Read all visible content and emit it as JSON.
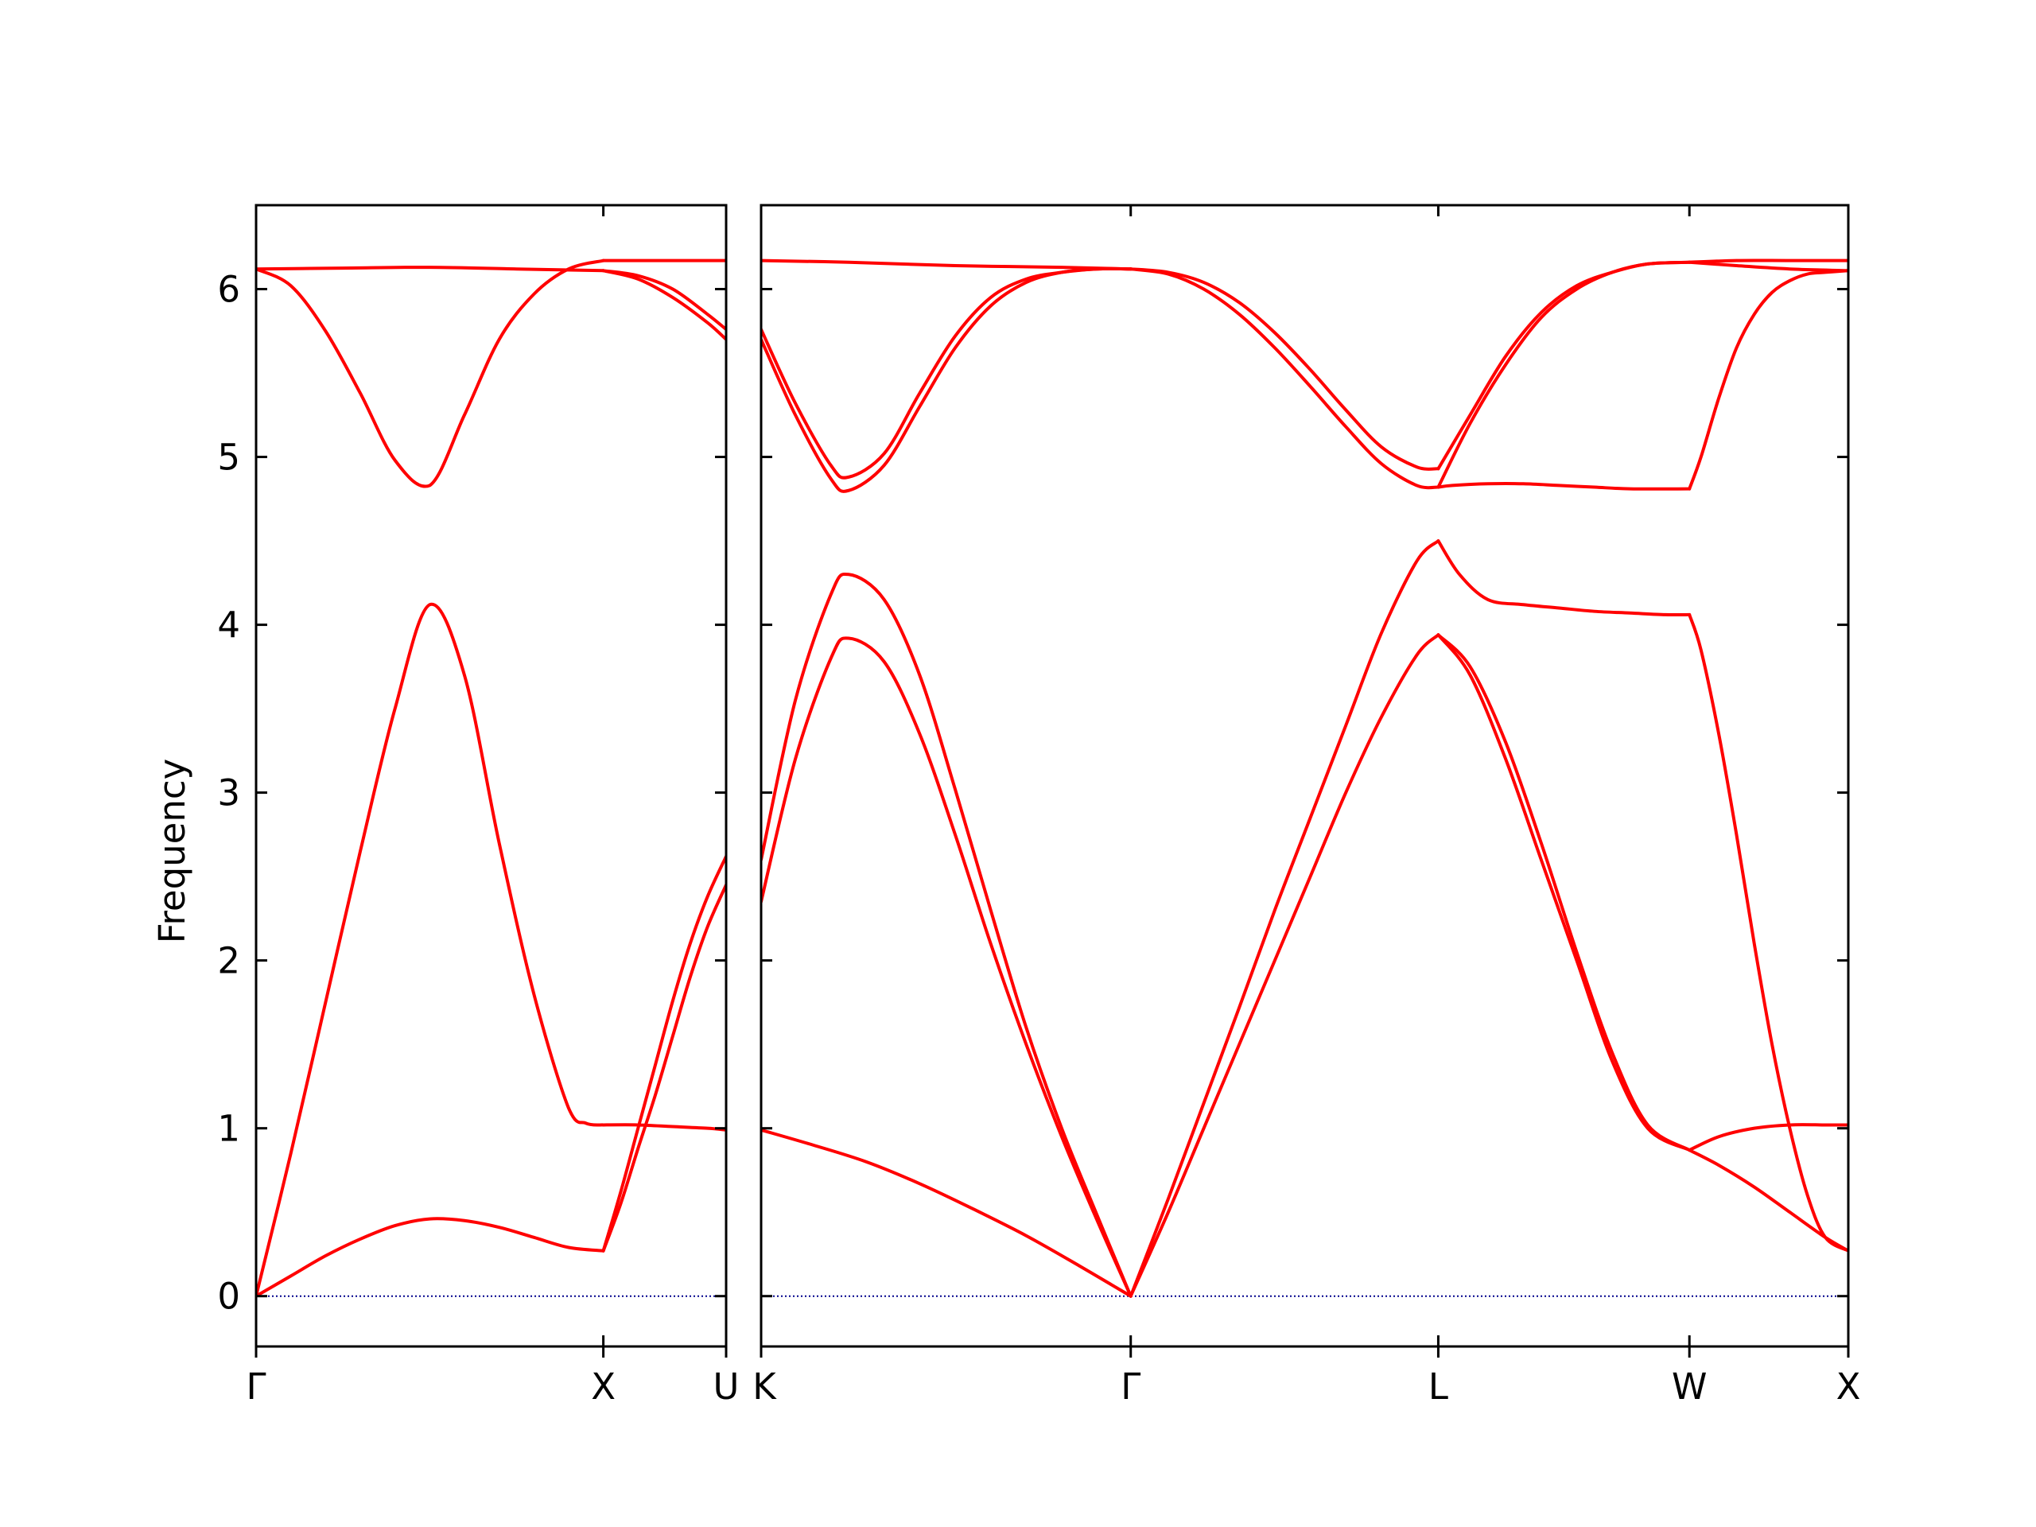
{
  "chart_data": {
    "type": "line",
    "title": "",
    "ylabel": "Frequency",
    "xlabel": "",
    "ylim": [
      -0.3,
      6.5
    ],
    "grid": false,
    "legend": "none",
    "colors": {
      "band": "#ff0000",
      "zero_line": "#00008b",
      "frame": "#000000"
    },
    "yticks": [
      0,
      1,
      2,
      3,
      4,
      5,
      6
    ],
    "panels": [
      {
        "xlim": [
          0,
          1.3536
        ],
        "xticks": [
          {
            "x": 0,
            "label": "Γ"
          },
          {
            "x": 1.0,
            "label": "X"
          },
          {
            "x": 1.3536,
            "label": "U"
          }
        ],
        "segments": [
          {
            "x_start": 0,
            "x_end": 1.0,
            "bands": [
              {
                "x": [
                  0,
                  0.1,
                  0.2,
                  0.3,
                  0.4,
                  0.5,
                  0.6,
                  0.7,
                  0.8,
                  0.9,
                  1.0
                ],
                "y": [
                  0,
                  0.12,
                  0.24,
                  0.34,
                  0.42,
                  0.46,
                  0.45,
                  0.41,
                  0.35,
                  0.29,
                  0.27
                ]
              },
              {
                "x": [
                  0,
                  0.1,
                  0.2,
                  0.3,
                  0.4,
                  0.5,
                  0.6,
                  0.7,
                  0.8,
                  0.9,
                  0.95,
                  1.0
                ],
                "y": [
                  0,
                  0.85,
                  1.75,
                  2.65,
                  3.5,
                  4.12,
                  3.7,
                  2.7,
                  1.8,
                  1.12,
                  1.03,
                  1.02
                ]
              },
              {
                "x": [
                  0,
                  0.1,
                  0.2,
                  0.3,
                  0.4,
                  0.5,
                  0.6,
                  0.7,
                  0.8,
                  0.9,
                  1.0
                ],
                "y": [
                  6.12,
                  6.02,
                  5.75,
                  5.38,
                  4.98,
                  4.83,
                  5.25,
                  5.7,
                  5.97,
                  6.12,
                  6.17
                ]
              },
              {
                "x": [
                  0,
                  0.25,
                  0.5,
                  0.75,
                  1.0
                ],
                "y": [
                  6.12,
                  6.125,
                  6.13,
                  6.12,
                  6.11
                ]
              }
            ]
          },
          {
            "x_start": 1.0,
            "x_end": 1.3536,
            "bands": [
              {
                "x": [
                  1.0,
                  1.05,
                  1.1,
                  1.15,
                  1.2,
                  1.25,
                  1.3,
                  1.3536
                ],
                "y": [
                  0.27,
                  0.55,
                  0.88,
                  1.2,
                  1.55,
                  1.9,
                  2.2,
                  2.45
                ]
              },
              {
                "x": [
                  1.0,
                  1.05,
                  1.1,
                  1.15,
                  1.2,
                  1.25,
                  1.3,
                  1.3536
                ],
                "y": [
                  0.27,
                  0.62,
                  1.0,
                  1.38,
                  1.76,
                  2.1,
                  2.38,
                  2.62
                ]
              },
              {
                "x": [
                  1.0,
                  1.1,
                  1.2,
                  1.3,
                  1.3536
                ],
                "y": [
                  1.02,
                  1.02,
                  1.01,
                  1.0,
                  0.99
                ]
              },
              {
                "x": [
                  1.0,
                  1.1,
                  1.2,
                  1.3,
                  1.3536
                ],
                "y": [
                  6.11,
                  6.06,
                  5.95,
                  5.8,
                  5.7
                ]
              },
              {
                "x": [
                  1.0,
                  1.1,
                  1.2,
                  1.3,
                  1.3536
                ],
                "y": [
                  6.11,
                  6.08,
                  6.0,
                  5.85,
                  5.76
                ]
              },
              {
                "x": [
                  1.0,
                  1.1,
                  1.2,
                  1.3,
                  1.3536
                ],
                "y": [
                  6.17,
                  6.17,
                  6.17,
                  6.17,
                  6.17
                ]
              }
            ]
          }
        ]
      },
      {
        "xlim": [
          1.3536,
          4.4148
        ],
        "xticks": [
          {
            "x": 1.3536,
            "label": "K"
          },
          {
            "x": 2.3943,
            "label": "Γ"
          },
          {
            "x": 3.2603,
            "label": "L"
          },
          {
            "x": 3.9674,
            "label": "W"
          },
          {
            "x": 4.4148,
            "label": "X"
          }
        ],
        "segments": [
          {
            "x_start": 1.3536,
            "x_end": 2.3943,
            "bands": [
              {
                "x": [
                  1.3536,
                  1.5,
                  1.65,
                  1.8,
                  1.95,
                  2.1,
                  2.25,
                  2.3943
                ],
                "y": [
                  0.99,
                  0.9,
                  0.8,
                  0.67,
                  0.52,
                  0.36,
                  0.18,
                  0
                ]
              },
              {
                "x": [
                  1.3536,
                  1.45,
                  1.55,
                  1.6,
                  1.7,
                  1.8,
                  1.9,
                  2.0,
                  2.1,
                  2.2,
                  2.3,
                  2.3943
                ],
                "y": [
                  2.35,
                  3.2,
                  3.8,
                  3.92,
                  3.78,
                  3.35,
                  2.75,
                  2.1,
                  1.5,
                  0.95,
                  0.45,
                  0
                ]
              },
              {
                "x": [
                  1.3536,
                  1.45,
                  1.55,
                  1.6,
                  1.7,
                  1.8,
                  1.9,
                  2.0,
                  2.1,
                  2.2,
                  2.3,
                  2.3943
                ],
                "y": [
                  2.6,
                  3.55,
                  4.18,
                  4.3,
                  4.15,
                  3.7,
                  3.02,
                  2.3,
                  1.6,
                  1.0,
                  0.48,
                  0
                ]
              },
              {
                "x": [
                  1.3536,
                  1.45,
                  1.55,
                  1.6,
                  1.7,
                  1.8,
                  1.9,
                  2.0,
                  2.1,
                  2.2,
                  2.3,
                  2.3943
                ],
                "y": [
                  5.7,
                  5.25,
                  4.87,
                  4.8,
                  4.95,
                  5.3,
                  5.65,
                  5.9,
                  6.04,
                  6.1,
                  6.12,
                  6.12
                ]
              },
              {
                "x": [
                  1.3536,
                  1.45,
                  1.55,
                  1.6,
                  1.7,
                  1.8,
                  1.9,
                  2.0,
                  2.1,
                  2.2,
                  2.3,
                  2.3943
                ],
                "y": [
                  5.76,
                  5.32,
                  4.95,
                  4.88,
                  5.02,
                  5.38,
                  5.72,
                  5.95,
                  6.06,
                  6.1,
                  6.12,
                  6.12
                ]
              },
              {
                "x": [
                  1.3536,
                  1.6,
                  1.9,
                  2.2,
                  2.3943
                ],
                "y": [
                  6.17,
                  6.16,
                  6.14,
                  6.13,
                  6.12
                ]
              }
            ]
          },
          {
            "x_start": 2.3943,
            "x_end": 3.2603,
            "bands": [
              {
                "x": [
                  2.3943,
                  2.5,
                  2.6,
                  2.7,
                  2.8,
                  2.9,
                  3.0,
                  3.1,
                  3.2,
                  3.2603
                ],
                "y": [
                  0,
                  0.5,
                  1.0,
                  1.5,
                  2.0,
                  2.5,
                  3.0,
                  3.45,
                  3.82,
                  3.94
                ]
              },
              {
                "x": [
                  2.3943,
                  2.5,
                  2.6,
                  2.7,
                  2.8,
                  2.9,
                  3.0,
                  3.1,
                  3.2,
                  3.2603
                ],
                "y": [
                  0,
                  0.58,
                  1.15,
                  1.72,
                  2.3,
                  2.85,
                  3.4,
                  3.95,
                  4.38,
                  4.5
                ]
              },
              {
                "x": [
                  2.3943,
                  2.5,
                  2.6,
                  2.7,
                  2.8,
                  2.9,
                  3.0,
                  3.1,
                  3.2,
                  3.2603
                ],
                "y": [
                  6.12,
                  6.09,
                  6.0,
                  5.85,
                  5.65,
                  5.42,
                  5.18,
                  4.96,
                  4.83,
                  4.82
                ]
              },
              {
                "x": [
                  2.3943,
                  2.5,
                  2.6,
                  2.7,
                  2.8,
                  2.9,
                  3.0,
                  3.1,
                  3.2,
                  3.2603
                ],
                "y": [
                  6.12,
                  6.1,
                  6.04,
                  5.92,
                  5.74,
                  5.52,
                  5.28,
                  5.06,
                  4.94,
                  4.93
                ]
              }
            ]
          },
          {
            "x_start": 3.2603,
            "x_end": 3.9674,
            "bands": [
              {
                "x": [
                  3.2603,
                  3.35,
                  3.45,
                  3.55,
                  3.65,
                  3.75,
                  3.85,
                  3.9674
                ],
                "y": [
                  3.94,
                  3.7,
                  3.2,
                  2.6,
                  2.0,
                  1.4,
                  1.0,
                  0.87
                ]
              },
              {
                "x": [
                  3.2603,
                  3.35,
                  3.45,
                  3.55,
                  3.65,
                  3.75,
                  3.85,
                  3.9674
                ],
                "y": [
                  3.94,
                  3.75,
                  3.3,
                  2.7,
                  2.05,
                  1.45,
                  1.02,
                  0.87
                ]
              },
              {
                "x": [
                  3.2603,
                  3.32,
                  3.4,
                  3.5,
                  3.6,
                  3.7,
                  3.8,
                  3.9,
                  3.9674
                ],
                "y": [
                  4.5,
                  4.3,
                  4.15,
                  4.12,
                  4.1,
                  4.08,
                  4.07,
                  4.06,
                  4.06
                ]
              },
              {
                "x": [
                  3.2603,
                  3.3,
                  3.4,
                  3.5,
                  3.6,
                  3.7,
                  3.8,
                  3.9674
                ],
                "y": [
                  4.82,
                  4.83,
                  4.84,
                  4.84,
                  4.83,
                  4.82,
                  4.81,
                  4.81
                ]
              },
              {
                "x": [
                  3.2603,
                  3.35,
                  3.45,
                  3.55,
                  3.65,
                  3.75,
                  3.85,
                  3.9674
                ],
                "y": [
                  4.82,
                  5.2,
                  5.55,
                  5.83,
                  6.0,
                  6.1,
                  6.15,
                  6.16
                ]
              },
              {
                "x": [
                  3.2603,
                  3.35,
                  3.45,
                  3.55,
                  3.65,
                  3.75,
                  3.85,
                  3.9674
                ],
                "y": [
                  4.93,
                  5.25,
                  5.6,
                  5.86,
                  6.02,
                  6.1,
                  6.15,
                  6.16
                ]
              }
            ]
          },
          {
            "x_start": 3.9674,
            "x_end": 4.4148,
            "bands": [
              {
                "x": [
                  3.9674,
                  4.05,
                  4.15,
                  4.25,
                  4.35,
                  4.4148
                ],
                "y": [
                  0.87,
                  0.78,
                  0.65,
                  0.5,
                  0.35,
                  0.27
                ]
              },
              {
                "x": [
                  3.9674,
                  4.05,
                  4.15,
                  4.25,
                  4.35,
                  4.4148
                ],
                "y": [
                  0.87,
                  0.95,
                  1.0,
                  1.02,
                  1.02,
                  1.02
                ]
              },
              {
                "x": [
                  3.9674,
                  4.0,
                  4.05,
                  4.1,
                  4.15,
                  4.2,
                  4.25,
                  4.3,
                  4.35,
                  4.4148
                ],
                "y": [
                  4.06,
                  3.85,
                  3.35,
                  2.75,
                  2.1,
                  1.5,
                  1.0,
                  0.6,
                  0.35,
                  0.27
                ]
              },
              {
                "x": [
                  3.9674,
                  4.0,
                  4.05,
                  4.1,
                  4.15,
                  4.2,
                  4.25,
                  4.3,
                  4.35,
                  4.4148
                ],
                "y": [
                  4.81,
                  5.0,
                  5.35,
                  5.65,
                  5.85,
                  5.98,
                  6.05,
                  6.09,
                  6.1,
                  6.11
                ]
              },
              {
                "x": [
                  3.9674,
                  4.1,
                  4.25,
                  4.4148
                ],
                "y": [
                  6.16,
                  6.14,
                  6.12,
                  6.11
                ]
              },
              {
                "x": [
                  3.9674,
                  4.1,
                  4.25,
                  4.4148
                ],
                "y": [
                  6.16,
                  6.17,
                  6.17,
                  6.17
                ]
              }
            ]
          }
        ]
      }
    ]
  }
}
